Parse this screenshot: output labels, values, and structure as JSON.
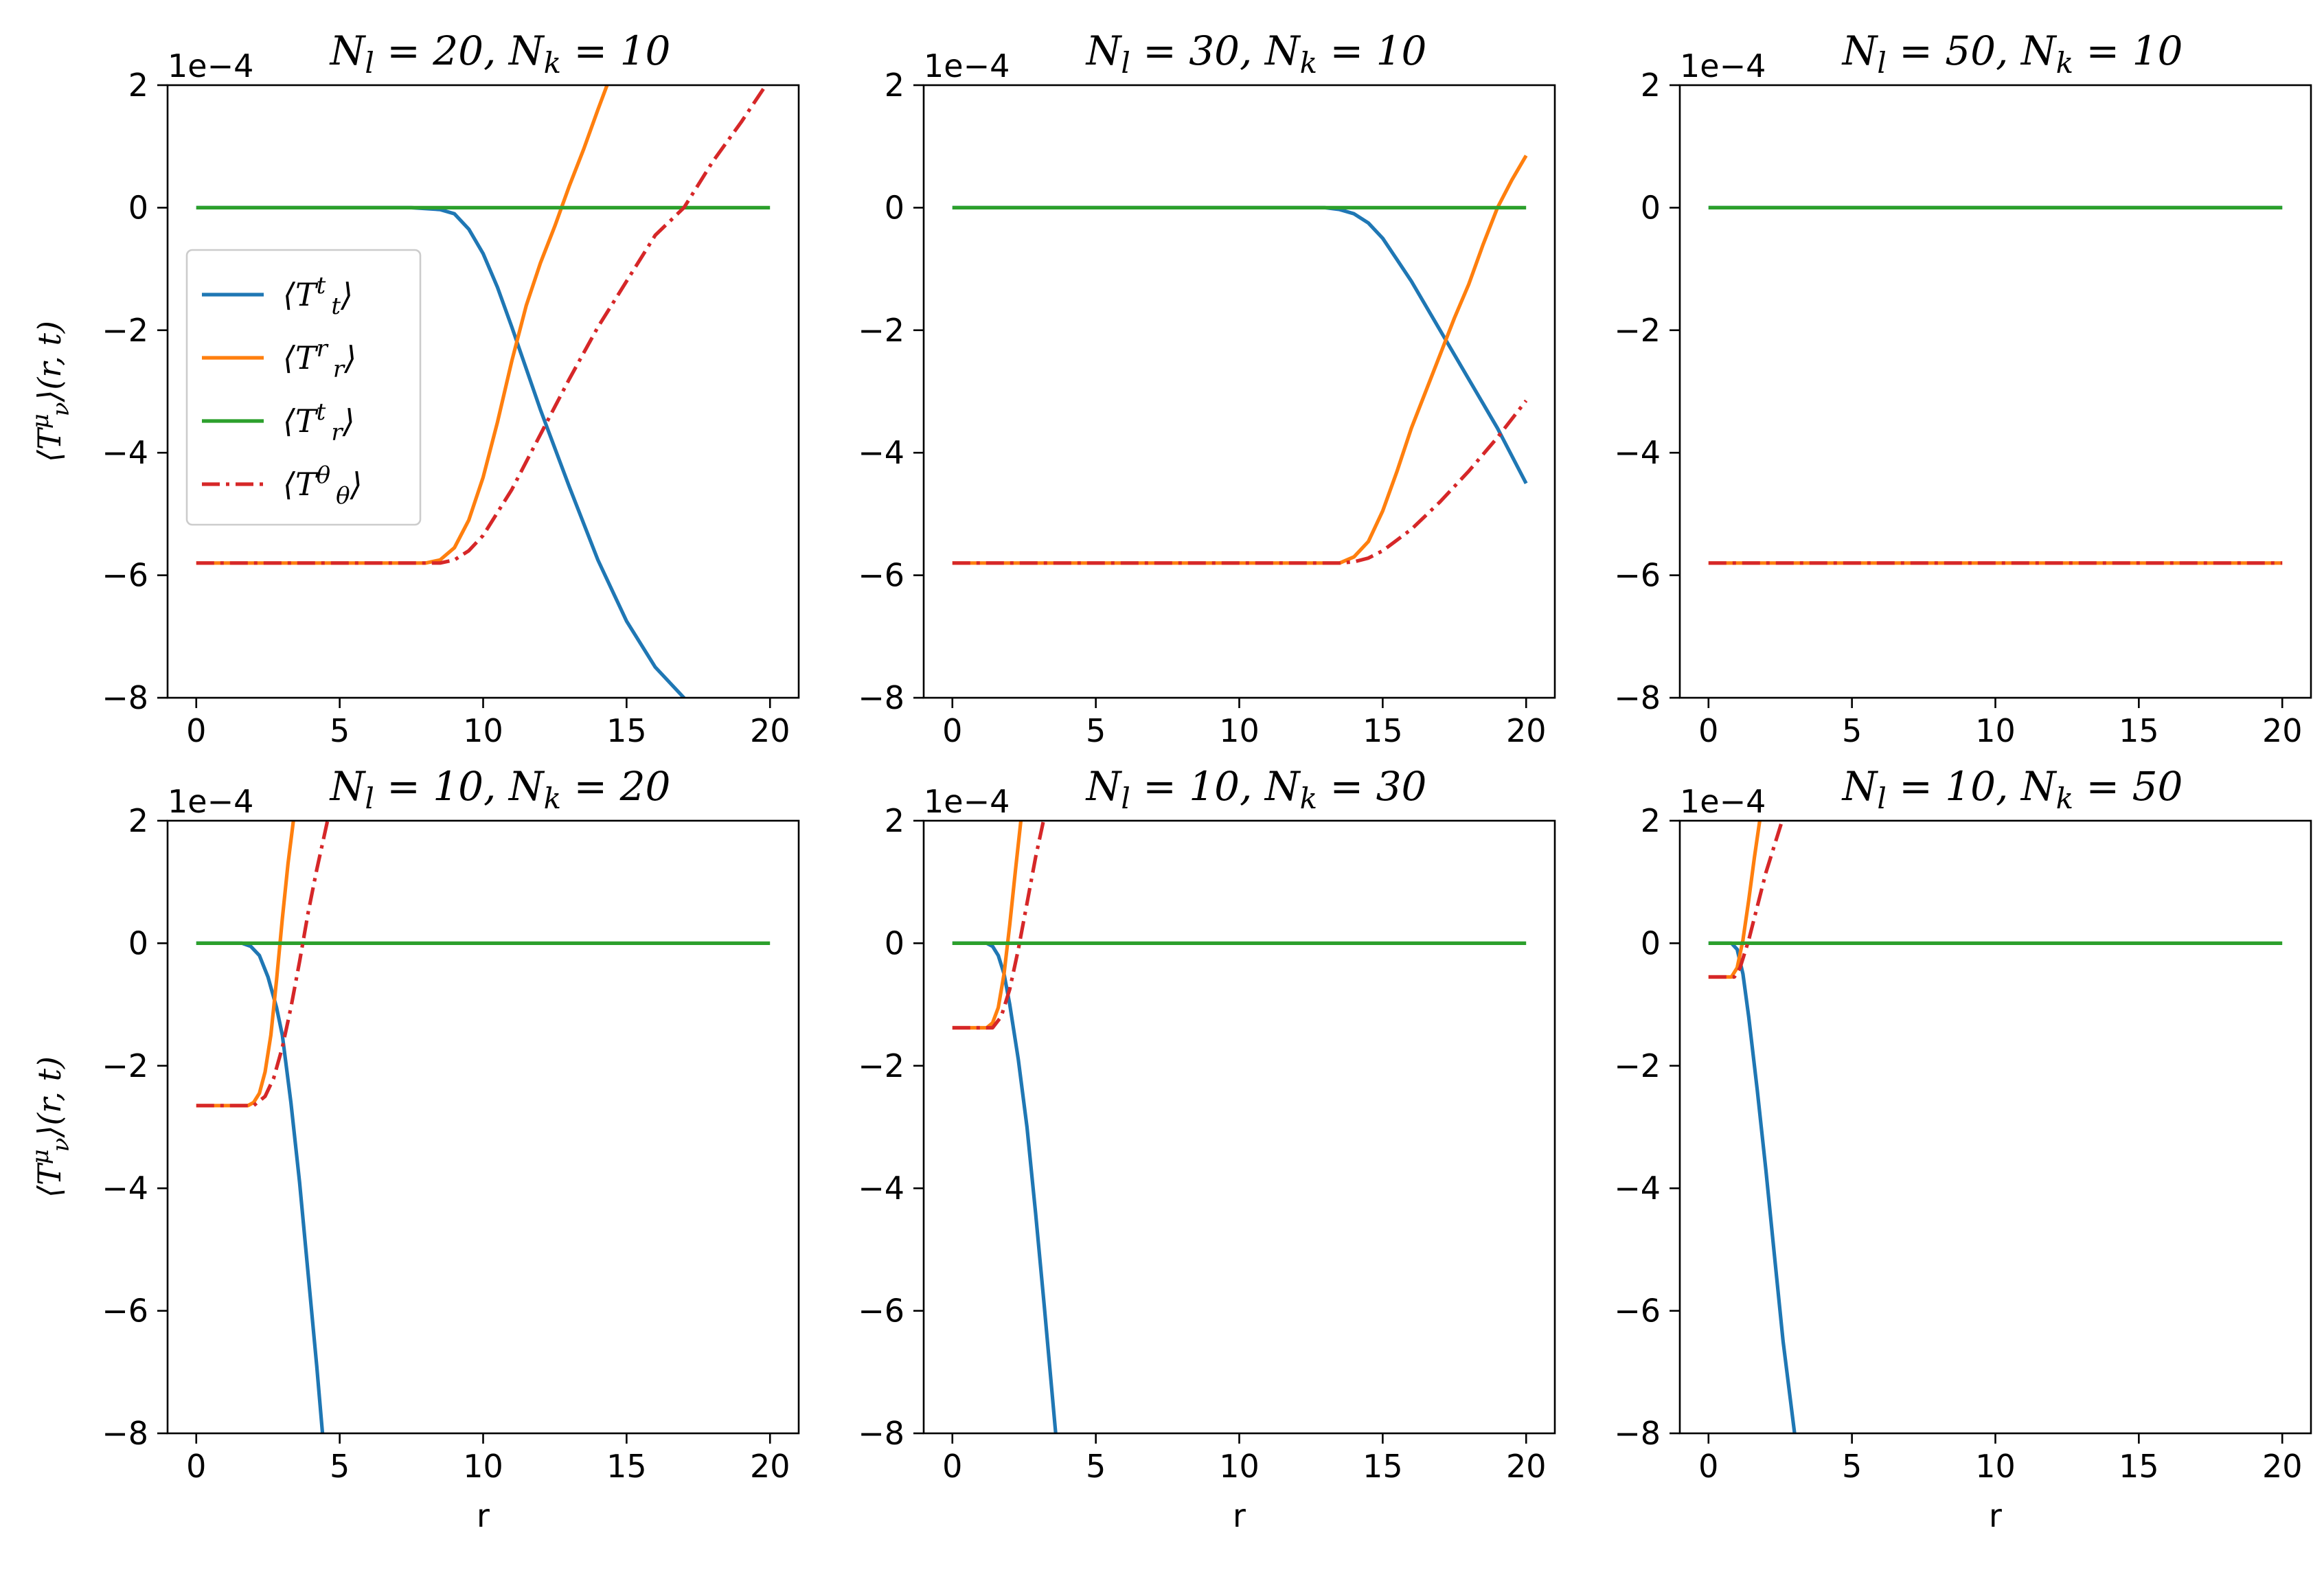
{
  "chart_data": [
    {
      "type": "line",
      "title": "N_l = 20, N_k = 10",
      "title_parts": [
        "N",
        "l",
        " = 20, ",
        "N",
        "k",
        " = 10"
      ],
      "xlabel": "",
      "ylabel": "⟨T^μ_ν⟩(r, t)",
      "ylabel_parts": [
        "⟨T",
        "μ",
        "ν",
        "⟩(r, t)"
      ],
      "y_offset_text": "1e−4",
      "xlim": [
        -1,
        21
      ],
      "ylim": [
        -8,
        2
      ],
      "xticks": [
        0,
        5,
        10,
        15,
        20
      ],
      "yticks": [
        -8,
        -6,
        -4,
        -2,
        0,
        2
      ],
      "x_tick_labels": [
        "0",
        "5",
        "10",
        "15",
        "20"
      ],
      "y_tick_labels": [
        "−8",
        "−6",
        "−4",
        "−2",
        "0",
        "2"
      ],
      "grid": false,
      "legend": "center-left",
      "series": [
        {
          "name": "⟨T^t_t⟩",
          "color": "#1f77b4",
          "style": "solid",
          "x": [
            0,
            7.5,
            8.5,
            9,
            9.5,
            10,
            10.5,
            11,
            12,
            13,
            14,
            15,
            16,
            17,
            17.1
          ],
          "y": [
            0,
            0,
            -0.03,
            -0.1,
            -0.35,
            -0.75,
            -1.3,
            -1.95,
            -3.3,
            -4.55,
            -5.75,
            -6.75,
            -7.5,
            -8.0,
            -8.1
          ]
        },
        {
          "name": "⟨T^r_r⟩",
          "color": "#ff7f0e",
          "style": "solid",
          "x": [
            0,
            8,
            8.5,
            9,
            9.5,
            10,
            10.5,
            11,
            11.5,
            12,
            12.5,
            13,
            13.5,
            14,
            14.4
          ],
          "y": [
            -5.8,
            -5.8,
            -5.75,
            -5.55,
            -5.1,
            -4.4,
            -3.5,
            -2.5,
            -1.6,
            -0.9,
            -0.3,
            0.35,
            0.95,
            1.6,
            2.1
          ]
        },
        {
          "name": "⟨T^t_r⟩",
          "color": "#2ca02c",
          "style": "solid",
          "x": [
            0,
            20
          ],
          "y": [
            0,
            0
          ]
        },
        {
          "name": "⟨T^θ_θ⟩",
          "color": "#d62728",
          "style": "dashdot",
          "x": [
            0,
            8.5,
            9,
            9.5,
            10,
            11,
            12,
            13,
            14,
            15,
            16,
            17,
            18,
            19,
            20
          ],
          "y": [
            -5.8,
            -5.8,
            -5.75,
            -5.6,
            -5.35,
            -4.6,
            -3.7,
            -2.8,
            -1.95,
            -1.2,
            -0.45,
            0.0,
            0.75,
            1.4,
            2.1
          ]
        }
      ]
    },
    {
      "type": "line",
      "title": "N_l = 30, N_k = 10",
      "title_parts": [
        "N",
        "l",
        " = 30, ",
        "N",
        "k",
        " = 10"
      ],
      "xlabel": "",
      "ylabel": "",
      "y_offset_text": "1e−4",
      "xlim": [
        -1,
        21
      ],
      "ylim": [
        -8,
        2
      ],
      "xticks": [
        0,
        5,
        10,
        15,
        20
      ],
      "yticks": [
        -8,
        -6,
        -4,
        -2,
        0,
        2
      ],
      "x_tick_labels": [
        "0",
        "5",
        "10",
        "15",
        "20"
      ],
      "y_tick_labels": [
        "−8",
        "−6",
        "−4",
        "−2",
        "0",
        "2"
      ],
      "grid": false,
      "series": [
        {
          "color": "#1f77b4",
          "style": "solid",
          "x": [
            0,
            13,
            13.5,
            14,
            14.5,
            15,
            15.5,
            16,
            17,
            18,
            19,
            20
          ],
          "y": [
            0,
            0,
            -0.03,
            -0.1,
            -0.25,
            -0.5,
            -0.85,
            -1.2,
            -2.0,
            -2.8,
            -3.6,
            -4.5
          ]
        },
        {
          "color": "#ff7f0e",
          "style": "solid",
          "x": [
            0,
            13.5,
            14,
            14.5,
            15,
            15.5,
            16,
            16.5,
            17,
            17.5,
            18,
            18.5,
            19,
            19.5,
            20
          ],
          "y": [
            -5.8,
            -5.8,
            -5.7,
            -5.45,
            -4.95,
            -4.3,
            -3.6,
            -3.0,
            -2.4,
            -1.8,
            -1.25,
            -0.6,
            0.0,
            0.45,
            0.85
          ]
        },
        {
          "color": "#2ca02c",
          "style": "solid",
          "x": [
            0,
            20
          ],
          "y": [
            0,
            0
          ]
        },
        {
          "color": "#d62728",
          "style": "dashdot",
          "x": [
            0,
            13.5,
            14,
            14.5,
            15,
            16,
            17,
            18,
            19,
            20
          ],
          "y": [
            -5.8,
            -5.8,
            -5.78,
            -5.72,
            -5.6,
            -5.25,
            -4.8,
            -4.3,
            -3.75,
            -3.15
          ]
        }
      ]
    },
    {
      "type": "line",
      "title": "N_l = 50, N_k = 10",
      "title_parts": [
        "N",
        "l",
        " = 50, ",
        "N",
        "k",
        " = 10"
      ],
      "xlabel": "",
      "ylabel": "",
      "y_offset_text": "1e−4",
      "xlim": [
        -1,
        21
      ],
      "ylim": [
        -8,
        2
      ],
      "xticks": [
        0,
        5,
        10,
        15,
        20
      ],
      "yticks": [
        -8,
        -6,
        -4,
        -2,
        0,
        2
      ],
      "x_tick_labels": [
        "0",
        "5",
        "10",
        "15",
        "20"
      ],
      "y_tick_labels": [
        "−8",
        "−6",
        "−4",
        "−2",
        "0",
        "2"
      ],
      "grid": false,
      "series": [
        {
          "color": "#1f77b4",
          "style": "solid",
          "x": [
            0,
            20
          ],
          "y": [
            0,
            0
          ]
        },
        {
          "color": "#ff7f0e",
          "style": "solid",
          "x": [
            0,
            20
          ],
          "y": [
            -5.8,
            -5.8
          ]
        },
        {
          "color": "#2ca02c",
          "style": "solid",
          "x": [
            0,
            20
          ],
          "y": [
            0,
            0
          ]
        },
        {
          "color": "#d62728",
          "style": "dashdot",
          "x": [
            0,
            20
          ],
          "y": [
            -5.8,
            -5.8
          ]
        }
      ]
    },
    {
      "type": "line",
      "title": "N_l = 10, N_k = 20",
      "title_parts": [
        "N",
        "l",
        " = 10, ",
        "N",
        "k",
        " = 20"
      ],
      "xlabel": "r",
      "ylabel": "⟨T^μ_ν⟩(r, t)",
      "ylabel_parts": [
        "⟨T",
        "μ",
        "ν",
        "⟩(r, t)"
      ],
      "y_offset_text": "1e−4",
      "xlim": [
        -1,
        21
      ],
      "ylim": [
        -8,
        2
      ],
      "xticks": [
        0,
        5,
        10,
        15,
        20
      ],
      "yticks": [
        -8,
        -6,
        -4,
        -2,
        0,
        2
      ],
      "x_tick_labels": [
        "0",
        "5",
        "10",
        "15",
        "20"
      ],
      "y_tick_labels": [
        "−8",
        "−6",
        "−4",
        "−2",
        "0",
        "2"
      ],
      "grid": false,
      "series": [
        {
          "color": "#1f77b4",
          "style": "solid",
          "x": [
            0,
            1.6,
            1.9,
            2.2,
            2.5,
            2.8,
            3.0,
            3.3,
            3.6,
            3.9,
            4.2,
            4.4
          ],
          "y": [
            0,
            0,
            -0.05,
            -0.2,
            -0.55,
            -1.05,
            -1.5,
            -2.6,
            -3.9,
            -5.4,
            -6.9,
            -8.0
          ]
        },
        {
          "color": "#ff7f0e",
          "style": "solid",
          "x": [
            0,
            1.8,
            2.0,
            2.2,
            2.4,
            2.6,
            2.8,
            3.0,
            3.2,
            3.4
          ],
          "y": [
            -2.65,
            -2.65,
            -2.6,
            -2.45,
            -2.1,
            -1.5,
            -0.6,
            0.4,
            1.3,
            2.05
          ]
        },
        {
          "color": "#2ca02c",
          "style": "solid",
          "x": [
            0,
            20
          ],
          "y": [
            0,
            0
          ]
        },
        {
          "color": "#d62728",
          "style": "dashdot",
          "x": [
            0,
            2.0,
            2.4,
            2.7,
            3.0,
            3.3,
            3.6,
            3.9,
            4.2,
            4.6
          ],
          "y": [
            -2.65,
            -2.65,
            -2.5,
            -2.2,
            -1.7,
            -1.05,
            -0.3,
            0.5,
            1.2,
            2.05
          ]
        }
      ]
    },
    {
      "type": "line",
      "title": "N_l = 10, N_k = 30",
      "title_parts": [
        "N",
        "l",
        " = 10, ",
        "N",
        "k",
        " = 30"
      ],
      "xlabel": "r",
      "ylabel": "",
      "y_offset_text": "1e−4",
      "xlim": [
        -1,
        21
      ],
      "ylim": [
        -8,
        2
      ],
      "xticks": [
        0,
        5,
        10,
        15,
        20
      ],
      "yticks": [
        -8,
        -6,
        -4,
        -2,
        0,
        2
      ],
      "x_tick_labels": [
        "0",
        "5",
        "10",
        "15",
        "20"
      ],
      "y_tick_labels": [
        "−8",
        "−6",
        "−4",
        "−2",
        "0",
        "2"
      ],
      "grid": false,
      "series": [
        {
          "color": "#1f77b4",
          "style": "solid",
          "x": [
            0,
            1.2,
            1.4,
            1.6,
            1.8,
            2.0,
            2.3,
            2.6,
            2.9,
            3.2,
            3.6
          ],
          "y": [
            0,
            0,
            -0.05,
            -0.2,
            -0.5,
            -1.0,
            -1.9,
            -3.0,
            -4.4,
            -5.9,
            -8.0
          ]
        },
        {
          "color": "#ff7f0e",
          "style": "solid",
          "x": [
            0,
            1.2,
            1.4,
            1.6,
            1.8,
            2.0,
            2.2,
            2.4
          ],
          "y": [
            -1.38,
            -1.38,
            -1.3,
            -1.05,
            -0.5,
            0.3,
            1.2,
            2.05
          ]
        },
        {
          "color": "#2ca02c",
          "style": "solid",
          "x": [
            0,
            20
          ],
          "y": [
            0,
            0
          ]
        },
        {
          "color": "#d62728",
          "style": "dashdot",
          "x": [
            0,
            1.4,
            1.7,
            2.0,
            2.3,
            2.6,
            2.9,
            3.2
          ],
          "y": [
            -1.38,
            -1.38,
            -1.2,
            -0.75,
            -0.1,
            0.65,
            1.4,
            2.05
          ]
        }
      ]
    },
    {
      "type": "line",
      "title": "N_l = 10, N_k = 50",
      "title_parts": [
        "N",
        "l",
        " = 10, ",
        "N",
        "k",
        " = 50"
      ],
      "xlabel": "r",
      "ylabel": "",
      "y_offset_text": "1e−4",
      "xlim": [
        -1,
        21
      ],
      "ylim": [
        -8,
        2
      ],
      "xticks": [
        0,
        5,
        10,
        15,
        20
      ],
      "yticks": [
        -8,
        -6,
        -4,
        -2,
        0,
        2
      ],
      "x_tick_labels": [
        "0",
        "5",
        "10",
        "15",
        "20"
      ],
      "y_tick_labels": [
        "−8",
        "−6",
        "−4",
        "−2",
        "0",
        "2"
      ],
      "grid": false,
      "series": [
        {
          "color": "#1f77b4",
          "style": "solid",
          "x": [
            0,
            0.8,
            1.0,
            1.2,
            1.4,
            1.7,
            2.0,
            2.3,
            2.6,
            3.0
          ],
          "y": [
            0,
            0,
            -0.1,
            -0.5,
            -1.2,
            -2.4,
            -3.7,
            -5.1,
            -6.5,
            -8.0
          ]
        },
        {
          "color": "#ff7f0e",
          "style": "solid",
          "x": [
            0,
            0.8,
            1.0,
            1.2,
            1.4,
            1.6,
            1.8
          ],
          "y": [
            -0.55,
            -0.55,
            -0.4,
            0.05,
            0.7,
            1.4,
            2.05
          ]
        },
        {
          "color": "#2ca02c",
          "style": "solid",
          "x": [
            0,
            20
          ],
          "y": [
            0,
            0
          ]
        },
        {
          "color": "#d62728",
          "style": "dashdot",
          "x": [
            0,
            0.9,
            1.1,
            1.4,
            1.7,
            2.0,
            2.3,
            2.6
          ],
          "y": [
            -0.55,
            -0.55,
            -0.4,
            0.05,
            0.6,
            1.15,
            1.6,
            2.05
          ]
        }
      ]
    }
  ],
  "legend": {
    "entries": [
      {
        "label": "⟨T^t_t⟩",
        "parts": [
          "⟨T",
          "t",
          "t",
          "⟩"
        ],
        "color": "#1f77b4",
        "style": "solid"
      },
      {
        "label": "⟨T^r_r⟩",
        "parts": [
          "⟨T",
          "r",
          "r",
          "⟩"
        ],
        "color": "#ff7f0e",
        "style": "solid"
      },
      {
        "label": "⟨T^t_r⟩",
        "parts": [
          "⟨T",
          "t",
          "r",
          "⟩"
        ],
        "color": "#2ca02c",
        "style": "solid"
      },
      {
        "label": "⟨T^θ_θ⟩",
        "parts": [
          "⟨T",
          "θ",
          "θ",
          "⟩"
        ],
        "color": "#d62728",
        "style": "dashdot"
      }
    ]
  }
}
